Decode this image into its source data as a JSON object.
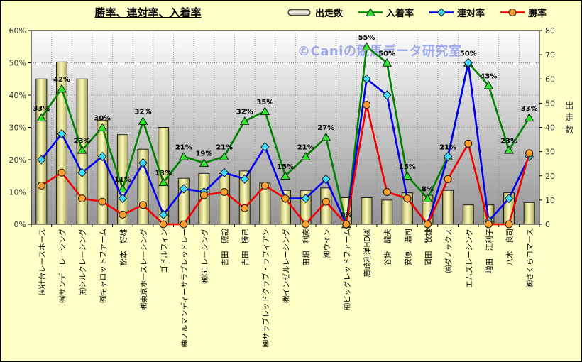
{
  "window": {
    "title": "勝率、連対率、入着率",
    "watermark": "©Caniの競馬データ研究室"
  },
  "legend": [
    {
      "id": "starts",
      "label": "出走数",
      "type": "bar",
      "color": "#e3e08e",
      "marker": "#fbf9c6"
    },
    {
      "id": "placing",
      "label": "入着率",
      "type": "triangle",
      "color": "#008200",
      "marker": "#2ee62e"
    },
    {
      "id": "quinella",
      "label": "連対率",
      "type": "diamond",
      "color": "#0000ee",
      "marker": "#3fd9ff"
    },
    {
      "id": "win",
      "label": "勝率",
      "type": "circle",
      "color": "#f00000",
      "marker": "#ff9d2e"
    }
  ],
  "chart_data": {
    "type": "bar",
    "title": "勝率、連対率、入着率",
    "categories": [
      "㈲社台レースホース",
      "㈲サンデーレーシング",
      "㈲シルクレーシング",
      "㈲キャロットファーム",
      "松本　好雄",
      "㈱東京ホースレーシング",
      "ゴドルフィン",
      "㈱ノルマンディーサラブレッドレー",
      "㈱G1レーシング",
      "吉田　照哉",
      "吉田　勝己",
      "㈱サラブレッドクラブ・ラフィアン",
      "㈱インゼルレーシング",
      "田畑　利彦",
      "㈱ウイン",
      "㈲ビッグレッドファーム",
      "廣崎利洋HD㈱",
      "谷掛　龍夫",
      "安原　浩司",
      "岡田　牧雄",
      "㈱ダノックス",
      "エムズレーシング",
      "増田　江利子",
      "八木　良司",
      "㈱さくらコマース"
    ],
    "series": [
      {
        "name": "出走数",
        "type": "bar",
        "axis": "right",
        "unit": "",
        "values": [
          60,
          67,
          60,
          43,
          37,
          31,
          40,
          19,
          21,
          21,
          22,
          17,
          14,
          14,
          15,
          11,
          11,
          10,
          13,
          12,
          14,
          8,
          8,
          13,
          9
        ]
      },
      {
        "name": "入着率",
        "type": "line",
        "axis": "left",
        "unit": "%",
        "labels_shown": true,
        "values": [
          33,
          42,
          23,
          30,
          11,
          32,
          13,
          21,
          19,
          21,
          32,
          35,
          15,
          21,
          27,
          0,
          55,
          50,
          15,
          8,
          21,
          50,
          43,
          23,
          33
        ]
      },
      {
        "name": "連対率",
        "type": "line",
        "axis": "left",
        "unit": "%",
        "values": [
          20,
          28,
          16,
          21,
          8,
          19,
          3,
          11,
          10,
          16,
          14,
          24,
          8,
          8,
          14,
          0,
          45,
          40,
          8,
          0,
          21,
          50,
          1,
          8,
          21
        ]
      },
      {
        "name": "勝率",
        "type": "line",
        "axis": "left",
        "unit": "%",
        "values": [
          12,
          16,
          8,
          7,
          3,
          6,
          0,
          0,
          9,
          10,
          5,
          12,
          8,
          0,
          7,
          0,
          37,
          10,
          8,
          0,
          14,
          25,
          0,
          0,
          22
        ]
      }
    ],
    "left_axis": {
      "min": 0,
      "max": 60,
      "ticks": [
        "0%",
        "10%",
        "20%",
        "30%",
        "40%",
        "50%",
        "60%"
      ]
    },
    "right_axis": {
      "min": 0,
      "max": 80,
      "ticks": [
        "0",
        "10",
        "20",
        "30",
        "40",
        "50",
        "60",
        "70",
        "80"
      ],
      "label": "出走数"
    },
    "grid": true,
    "legend_position": "top"
  }
}
